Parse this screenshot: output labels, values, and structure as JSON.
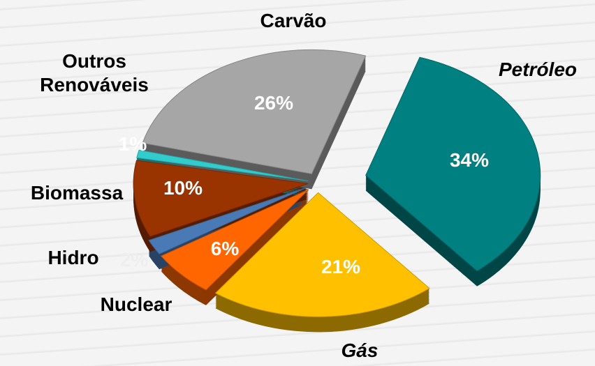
{
  "chart_data": {
    "type": "pie",
    "categories": [
      "Petróleo",
      "Gás",
      "Nuclear",
      "Hidro",
      "Biomassa",
      "Outros Renováveis",
      "Carvão"
    ],
    "values": [
      34,
      21,
      6,
      2,
      10,
      1,
      26
    ],
    "value_labels": [
      "34%",
      "21%",
      "6%",
      "2%",
      "10%",
      "1%",
      "26%"
    ],
    "colors": [
      "#008080",
      "#ffc000",
      "#ff6600",
      "#4a7ab5",
      "#993300",
      "#33cccc",
      "#a6a6a6"
    ]
  }
}
